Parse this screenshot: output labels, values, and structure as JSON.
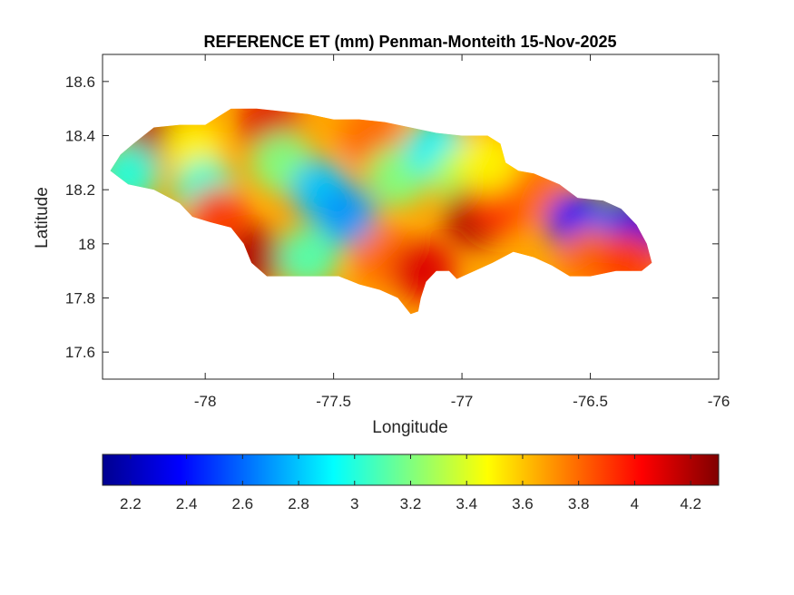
{
  "title": "REFERENCE ET (mm) Penman-Monteith 15-Nov-2025",
  "axes": {
    "xlabel": "Longitude",
    "ylabel": "Latitude",
    "xlim": [
      -78.4,
      -76
    ],
    "ylim": [
      17.5,
      18.7
    ],
    "xticks": [
      -78,
      -77.5,
      -77,
      -76.5,
      -76
    ],
    "xtick_labels": [
      "-78",
      "-77.5",
      "-77",
      "-76.5",
      "-76"
    ],
    "yticks": [
      17.6,
      17.8,
      18,
      18.2,
      18.4,
      18.6
    ],
    "ytick_labels": [
      "17.6",
      "17.8",
      "18",
      "18.2",
      "18.4",
      "18.6"
    ],
    "grid": false
  },
  "colorbar": {
    "colormap": "jet",
    "orientation": "horizontal",
    "placement": "below",
    "range": [
      2.1,
      4.3
    ],
    "ticks": [
      2.2,
      2.4,
      2.6,
      2.8,
      3,
      3.2,
      3.4,
      3.6,
      3.8,
      4,
      4.2
    ],
    "tick_labels": [
      "2.2",
      "2.4",
      "2.6",
      "2.8",
      "3",
      "3.2",
      "3.4",
      "3.6",
      "3.8",
      "4",
      "4.2"
    ]
  },
  "map_data": {
    "region": "Jamaica",
    "variable_range": [
      2.1,
      4.3
    ],
    "outline_lonlat": [
      [
        -78.37,
        18.27
      ],
      [
        -78.33,
        18.33
      ],
      [
        -78.28,
        18.37
      ],
      [
        -78.2,
        18.43
      ],
      [
        -78.1,
        18.44
      ],
      [
        -78.0,
        18.44
      ],
      [
        -77.95,
        18.47
      ],
      [
        -77.9,
        18.5
      ],
      [
        -77.8,
        18.5
      ],
      [
        -77.7,
        18.49
      ],
      [
        -77.6,
        18.48
      ],
      [
        -77.5,
        18.46
      ],
      [
        -77.4,
        18.46
      ],
      [
        -77.3,
        18.45
      ],
      [
        -77.2,
        18.43
      ],
      [
        -77.1,
        18.41
      ],
      [
        -77.0,
        18.4
      ],
      [
        -76.9,
        18.4
      ],
      [
        -76.85,
        18.37
      ],
      [
        -76.83,
        18.3
      ],
      [
        -76.78,
        18.27
      ],
      [
        -76.72,
        18.26
      ],
      [
        -76.62,
        18.22
      ],
      [
        -76.55,
        18.17
      ],
      [
        -76.45,
        18.16
      ],
      [
        -76.38,
        18.13
      ],
      [
        -76.32,
        18.07
      ],
      [
        -76.28,
        18.0
      ],
      [
        -76.26,
        17.93
      ],
      [
        -76.3,
        17.9
      ],
      [
        -76.4,
        17.9
      ],
      [
        -76.5,
        17.88
      ],
      [
        -76.58,
        17.88
      ],
      [
        -76.65,
        17.92
      ],
      [
        -76.72,
        17.95
      ],
      [
        -76.8,
        17.97
      ],
      [
        -76.88,
        17.93
      ],
      [
        -76.95,
        17.9
      ],
      [
        -77.02,
        17.87
      ],
      [
        -77.05,
        17.9
      ],
      [
        -77.1,
        17.9
      ],
      [
        -77.14,
        17.86
      ],
      [
        -77.16,
        17.8
      ],
      [
        -77.17,
        17.75
      ],
      [
        -77.2,
        17.74
      ],
      [
        -77.25,
        17.8
      ],
      [
        -77.32,
        17.83
      ],
      [
        -77.4,
        17.85
      ],
      [
        -77.48,
        17.88
      ],
      [
        -77.6,
        17.88
      ],
      [
        -77.7,
        17.88
      ],
      [
        -77.76,
        17.88
      ],
      [
        -77.82,
        17.93
      ],
      [
        -77.85,
        18.0
      ],
      [
        -77.9,
        18.06
      ],
      [
        -77.98,
        18.08
      ],
      [
        -78.05,
        18.1
      ],
      [
        -78.1,
        18.15
      ],
      [
        -78.2,
        18.2
      ],
      [
        -78.3,
        18.22
      ],
      [
        -78.37,
        18.27
      ]
    ],
    "field_centers": [
      {
        "lon": -78.2,
        "lat": 18.38,
        "value": 4.2
      },
      {
        "lon": -78.3,
        "lat": 18.26,
        "value": 3.0
      },
      {
        "lon": -78.05,
        "lat": 18.35,
        "value": 3.5
      },
      {
        "lon": -78.0,
        "lat": 18.2,
        "value": 3.0
      },
      {
        "lon": -77.75,
        "lat": 18.44,
        "value": 4.1
      },
      {
        "lon": -77.95,
        "lat": 18.1,
        "value": 3.9
      },
      {
        "lon": -77.8,
        "lat": 17.95,
        "value": 4.2
      },
      {
        "lon": -77.7,
        "lat": 18.3,
        "value": 3.2
      },
      {
        "lon": -77.55,
        "lat": 18.2,
        "value": 2.8
      },
      {
        "lon": -77.45,
        "lat": 18.1,
        "value": 2.7
      },
      {
        "lon": -77.6,
        "lat": 17.95,
        "value": 3.1
      },
      {
        "lon": -77.35,
        "lat": 18.4,
        "value": 3.8
      },
      {
        "lon": -77.25,
        "lat": 18.25,
        "value": 3.2
      },
      {
        "lon": -77.1,
        "lat": 18.35,
        "value": 2.9
      },
      {
        "lon": -77.0,
        "lat": 18.25,
        "value": 3.3
      },
      {
        "lon": -77.3,
        "lat": 17.95,
        "value": 3.8
      },
      {
        "lon": -77.15,
        "lat": 17.9,
        "value": 4.1
      },
      {
        "lon": -76.95,
        "lat": 18.1,
        "value": 4.2
      },
      {
        "lon": -76.85,
        "lat": 18.15,
        "value": 3.9
      },
      {
        "lon": -76.9,
        "lat": 18.3,
        "value": 3.5
      },
      {
        "lon": -76.7,
        "lat": 18.18,
        "value": 3.8
      },
      {
        "lon": -76.55,
        "lat": 18.08,
        "value": 2.4
      },
      {
        "lon": -76.4,
        "lat": 18.05,
        "value": 2.6
      },
      {
        "lon": -76.3,
        "lat": 18.05,
        "value": 2.3
      },
      {
        "lon": -76.5,
        "lat": 17.95,
        "value": 3.8
      },
      {
        "lon": -76.35,
        "lat": 17.93,
        "value": 3.9
      }
    ]
  }
}
